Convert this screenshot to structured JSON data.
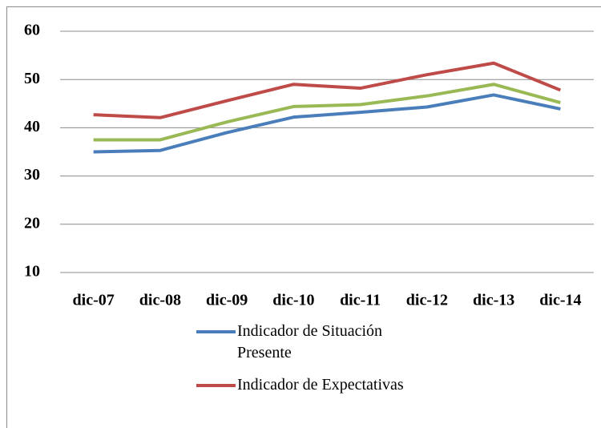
{
  "chart_data": {
    "type": "line",
    "categories": [
      "dic-07",
      "dic-08",
      "dic-09",
      "dic-10",
      "dic-11",
      "dic-12",
      "dic-13",
      "dic-14"
    ],
    "series": [
      {
        "name": "Indicador de Situación Presente",
        "color": "#4a7ebb",
        "values": [
          35,
          35.3,
          39,
          42.2,
          43.2,
          44.3,
          46.8,
          43.9
        ]
      },
      {
        "color": "#98b954",
        "values": [
          37.5,
          37.5,
          41.2,
          44.4,
          44.8,
          46.6,
          49,
          45.2
        ]
      },
      {
        "name": "Indicador de Expectativas",
        "color": "#be4b48",
        "values": [
          42.7,
          42.1,
          45.6,
          49,
          48.2,
          51,
          53.4,
          47.8
        ]
      }
    ],
    "ylim": [
      10,
      60
    ],
    "yticks": [
      10,
      20,
      30,
      40,
      50,
      60
    ],
    "grid": true
  }
}
